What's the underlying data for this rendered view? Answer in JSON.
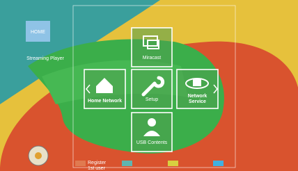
{
  "home_button": {
    "label": "HOME"
  },
  "app_name": "Streaming Player",
  "menu": {
    "items": [
      {
        "lines": [
          "Miracast"
        ]
      },
      {
        "lines": [
          "Home Network"
        ]
      },
      {
        "lines": [
          "Setup"
        ]
      },
      {
        "lines": [
          "Network",
          "Service"
        ]
      },
      {
        "lines": [
          "USB Contents"
        ]
      }
    ]
  },
  "color_keys": {
    "red": {
      "lines": [
        "Register",
        "1st user"
      ]
    }
  }
}
